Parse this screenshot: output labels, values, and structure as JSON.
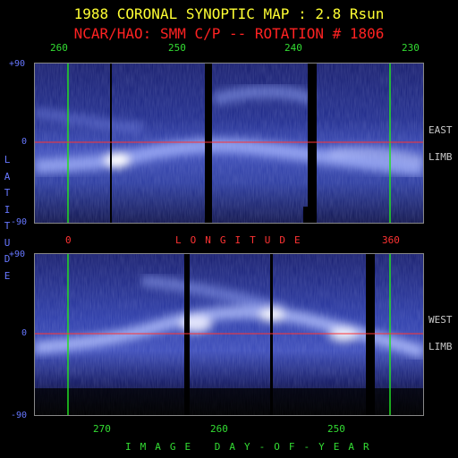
{
  "header": {
    "title": "1988 CORONAL SYNOPTIC MAP : 2.8 Rsun",
    "subtitle": "NCAR/HAO: SMM C/P -- ROTATION # 1806"
  },
  "top_panel": {
    "longitude_ticks": [
      "260",
      "250",
      "240",
      "230"
    ],
    "lat_ticks": [
      "+90",
      "0",
      "-90"
    ],
    "side_labels": [
      "EAST",
      "LIMB"
    ]
  },
  "middle": {
    "longitude_start": "0",
    "longitude_label": "LONGITUDE",
    "longitude_end": "360"
  },
  "bottom_panel": {
    "lat_ticks": [
      "+90",
      "0",
      "-90"
    ],
    "side_labels": [
      "WEST",
      "LIMB"
    ],
    "day_ticks": [
      "270",
      "260",
      "250"
    ],
    "day_label": "IMAGE DAY-OF-YEAR"
  },
  "y_axis_label": [
    "L",
    "A",
    "T",
    "I",
    "T",
    "U",
    "D",
    "E"
  ]
}
